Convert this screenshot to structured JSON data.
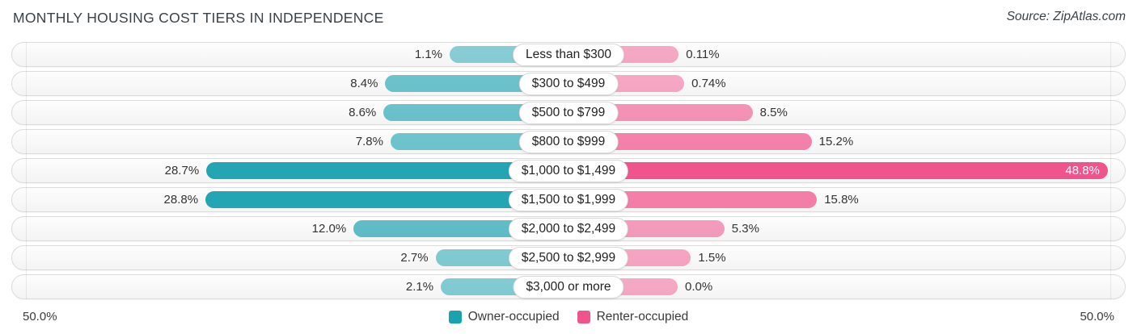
{
  "header": {
    "title": "MONTHLY HOUSING COST TIERS IN INDEPENDENCE",
    "source": "Source: ZipAtlas.com"
  },
  "axis": {
    "left_label": "50.0%",
    "right_label": "50.0%",
    "max_percent": 50
  },
  "legend": [
    {
      "label": "Owner-occupied",
      "color": "#1ba2b1"
    },
    {
      "label": "Renter-occupied",
      "color": "#f0548c"
    }
  ],
  "colors": {
    "owner_base_rgb": [
      23,
      160,
      175
    ],
    "renter_base_rgb": [
      240,
      84,
      140
    ],
    "value_text": "#333333",
    "inside_value_text": "#ffffff"
  },
  "chart_data": {
    "type": "bar",
    "orientation": "diverging-horizontal",
    "title": "MONTHLY HOUSING COST TIERS IN INDEPENDENCE",
    "categories": [
      "Less than $300",
      "$300 to $499",
      "$500 to $799",
      "$800 to $999",
      "$1,000 to $1,499",
      "$1,500 to $1,999",
      "$2,000 to $2,499",
      "$2,500 to $2,999",
      "$3,000 or more"
    ],
    "series": [
      {
        "name": "Owner-occupied",
        "side": "left",
        "values": [
          1.1,
          8.4,
          8.6,
          7.8,
          28.7,
          28.8,
          12.0,
          2.7,
          2.1
        ],
        "labels": [
          "1.1%",
          "8.4%",
          "8.6%",
          "7.8%",
          "28.7%",
          "28.8%",
          "12.0%",
          "2.7%",
          "2.1%"
        ]
      },
      {
        "name": "Renter-occupied",
        "side": "right",
        "values": [
          0.11,
          0.74,
          8.5,
          15.2,
          48.8,
          15.8,
          5.3,
          1.5,
          0.0
        ],
        "labels": [
          "0.11%",
          "0.74%",
          "8.5%",
          "15.2%",
          "48.8%",
          "15.8%",
          "5.3%",
          "1.5%",
          "0.0%"
        ]
      }
    ],
    "xlim": [
      -50,
      50
    ],
    "grid": false,
    "legend_position": "bottom-center"
  }
}
